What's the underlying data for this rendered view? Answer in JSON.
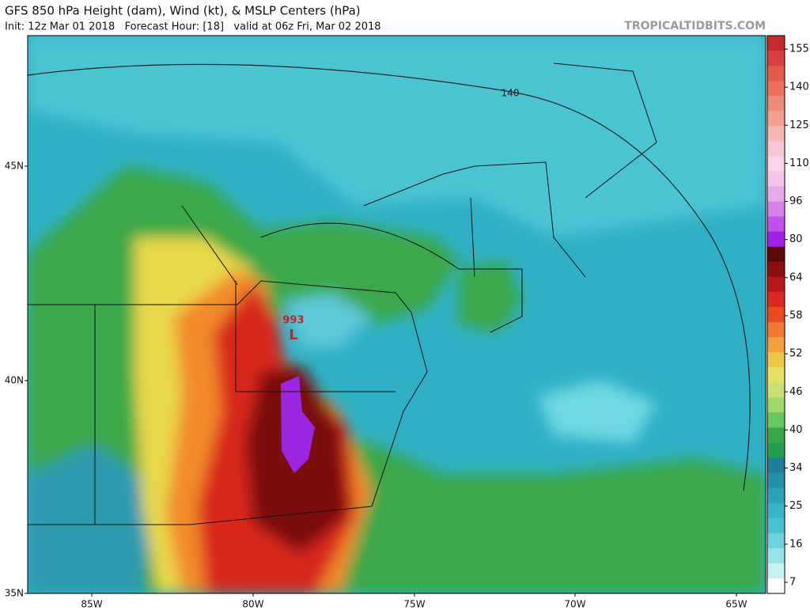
{
  "header": {
    "title": "GFS 850 hPa Height (dam), Wind (kt), & MSLP Centers (hPa)",
    "subtitle": "Init: 12z Mar 01 2018   Forecast Hour: [18]   valid at 06z Fri, Mar 02 2018",
    "watermark": "TROPICALTIDBITS.COM"
  },
  "map": {
    "lat_labels": [
      "45N",
      "40N",
      "35N"
    ],
    "lon_labels": [
      "85W",
      "80W",
      "75W",
      "70W",
      "65W"
    ],
    "contour_label": "140",
    "low_pressure": {
      "value": "993",
      "symbol": "L"
    }
  },
  "colorbar": {
    "labels": [
      "155",
      "140",
      "125",
      "110",
      "96",
      "80",
      "64",
      "58",
      "52",
      "46",
      "40",
      "34",
      "25",
      "16",
      "7"
    ]
  }
}
